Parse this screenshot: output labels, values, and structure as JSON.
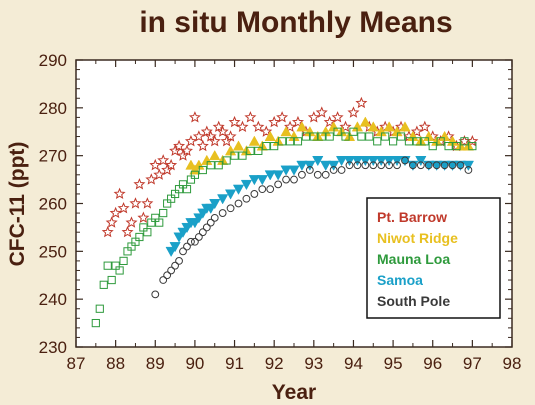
{
  "chart_data": {
    "type": "scatter",
    "title": "in situ Monthly Means",
    "xlabel": "Year",
    "ylabel": "CFC-11 (ppt)",
    "xlim": [
      87,
      98
    ],
    "ylim": [
      230,
      290
    ],
    "xticks": [
      87,
      88,
      89,
      90,
      91,
      92,
      93,
      94,
      95,
      96,
      97,
      98
    ],
    "yticks": [
      230,
      240,
      250,
      260,
      270,
      280,
      290
    ],
    "grid": false,
    "legend_position": "lower-right",
    "series": [
      {
        "name": "Pt. Barrow",
        "marker": "star",
        "color": "#c0392b",
        "x": [
          87.8,
          87.9,
          88.0,
          88.1,
          88.2,
          88.3,
          88.4,
          88.5,
          88.6,
          88.7,
          88.8,
          88.9,
          89.0,
          89.1,
          89.2,
          89.3,
          89.4,
          89.5,
          89.6,
          89.7,
          89.8,
          89.9,
          90.0,
          90.1,
          90.2,
          90.3,
          90.4,
          90.5,
          90.6,
          90.7,
          90.8,
          90.9,
          91.0,
          91.2,
          91.4,
          91.6,
          91.8,
          92.0,
          92.2,
          92.4,
          92.6,
          92.8,
          93.0,
          93.2,
          93.4,
          93.6,
          93.8,
          94.0,
          94.2,
          94.4,
          94.6,
          94.8,
          95.0,
          95.2,
          95.4,
          95.6,
          95.8,
          96.0,
          96.2,
          96.4,
          96.6,
          96.8,
          97.0
        ],
        "y": [
          254,
          256,
          258,
          262,
          259,
          254,
          256,
          260,
          264,
          257,
          260,
          265,
          268,
          266,
          269,
          267,
          268,
          271,
          272,
          270,
          271,
          273,
          278,
          274,
          272,
          275,
          274,
          273,
          276,
          275,
          273,
          274,
          277,
          276,
          278,
          276,
          275,
          277,
          278,
          276,
          277,
          275,
          278,
          279,
          277,
          278,
          276,
          279,
          281,
          276,
          275,
          276,
          275,
          276,
          274,
          275,
          276,
          274,
          273,
          274,
          272,
          273,
          273
        ]
      },
      {
        "name": "Niwot Ridge",
        "marker": "triangle-up",
        "color": "#e8c020",
        "x": [
          89.9,
          90.0,
          90.1,
          90.3,
          90.5,
          90.7,
          90.9,
          91.1,
          91.3,
          91.5,
          91.7,
          91.9,
          92.1,
          92.3,
          92.5,
          92.7,
          92.9,
          93.1,
          93.3,
          93.5,
          93.7,
          93.9,
          94.1,
          94.3,
          94.5,
          94.7,
          94.9,
          95.1,
          95.3,
          95.5,
          95.7,
          95.9,
          96.1,
          96.3,
          96.5,
          96.7,
          96.9
        ],
        "y": [
          268,
          267,
          268,
          269,
          270,
          269,
          271,
          272,
          271,
          273,
          272,
          274,
          273,
          275,
          274,
          276,
          275,
          274,
          275,
          276,
          275,
          274,
          276,
          277,
          276,
          275,
          276,
          275,
          276,
          274,
          273,
          274,
          273,
          274,
          273,
          272,
          272
        ]
      },
      {
        "name": "Mauna Loa",
        "marker": "square",
        "color": "#2e9a3c",
        "x": [
          87.5,
          87.6,
          87.7,
          87.8,
          87.9,
          88.0,
          88.1,
          88.2,
          88.3,
          88.4,
          88.5,
          88.6,
          88.7,
          88.8,
          88.9,
          89.0,
          89.1,
          89.2,
          89.3,
          89.4,
          89.5,
          89.6,
          89.7,
          89.8,
          89.9,
          90.0,
          90.2,
          90.4,
          90.6,
          90.8,
          91.0,
          91.2,
          91.4,
          91.6,
          91.8,
          92.0,
          92.2,
          92.4,
          92.6,
          92.8,
          93.0,
          93.2,
          93.4,
          93.6,
          93.8,
          94.0,
          94.2,
          94.4,
          94.6,
          94.8,
          95.0,
          95.2,
          95.4,
          95.6,
          95.8,
          96.0,
          96.2,
          96.4,
          96.6,
          96.8,
          97.0
        ],
        "y": [
          235,
          238,
          243,
          247,
          244,
          247,
          246,
          248,
          250,
          251,
          252,
          253,
          255,
          254,
          256,
          257,
          256,
          258,
          260,
          261,
          262,
          263,
          264,
          263,
          265,
          266,
          267,
          268,
          268,
          269,
          270,
          270,
          271,
          271,
          272,
          272,
          273,
          273,
          273,
          274,
          274,
          274,
          274,
          275,
          274,
          275,
          274,
          274,
          273,
          274,
          273,
          274,
          273,
          273,
          273,
          272,
          273,
          272,
          272,
          273,
          272
        ]
      },
      {
        "name": "Samoa",
        "marker": "triangle-down",
        "color": "#1aa0c8",
        "x": [
          89.4,
          89.5,
          89.6,
          89.7,
          89.8,
          89.9,
          90.0,
          90.1,
          90.2,
          90.3,
          90.4,
          90.5,
          90.7,
          90.9,
          91.1,
          91.3,
          91.5,
          91.7,
          91.9,
          92.1,
          92.3,
          92.5,
          92.7,
          92.9,
          93.1,
          93.3,
          93.5,
          93.7,
          93.9,
          94.1,
          94.3,
          94.5,
          94.7,
          94.9,
          95.1,
          95.3,
          95.5,
          95.7,
          95.9,
          96.1,
          96.3,
          96.5,
          96.7,
          96.9
        ],
        "y": [
          250,
          251,
          253,
          254,
          255,
          256,
          256,
          257,
          258,
          259,
          259,
          260,
          261,
          262,
          263,
          264,
          265,
          265,
          266,
          266,
          267,
          267,
          268,
          268,
          269,
          268,
          268,
          269,
          269,
          269,
          269,
          269,
          269,
          269,
          269,
          269,
          268,
          269,
          268,
          268,
          268,
          268,
          268,
          268
        ]
      },
      {
        "name": "South Pole",
        "marker": "circle",
        "color": "#3a3a3a",
        "x": [
          89.0,
          89.2,
          89.3,
          89.4,
          89.5,
          89.6,
          89.7,
          89.8,
          89.9,
          90.0,
          90.1,
          90.2,
          90.3,
          90.4,
          90.5,
          90.7,
          90.9,
          91.1,
          91.3,
          91.5,
          91.7,
          91.9,
          92.1,
          92.3,
          92.5,
          92.7,
          92.9,
          93.1,
          93.3,
          93.5,
          93.7,
          93.9,
          94.1,
          94.3,
          94.5,
          94.7,
          94.9,
          95.1,
          95.3,
          95.5,
          95.7,
          95.9,
          96.1,
          96.3,
          96.5,
          96.7,
          96.9
        ],
        "y": [
          241,
          244,
          245,
          246,
          247,
          248,
          250,
          251,
          252,
          252,
          253,
          254,
          255,
          256,
          257,
          258,
          259,
          260,
          261,
          262,
          263,
          263,
          264,
          265,
          265,
          266,
          267,
          266,
          266,
          267,
          267,
          268,
          268,
          268,
          268,
          268,
          268,
          268,
          269,
          268,
          268,
          268,
          268,
          268,
          268,
          268,
          267
        ]
      }
    ]
  }
}
